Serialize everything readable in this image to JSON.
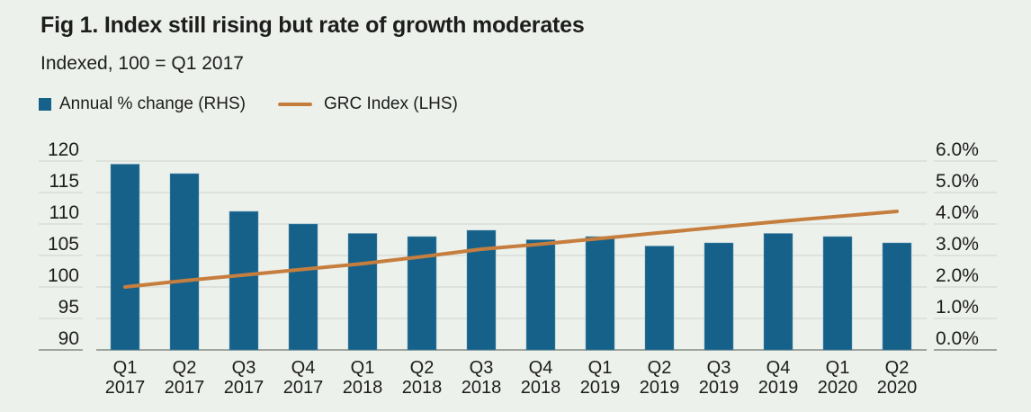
{
  "figure": {
    "title": "Fig 1. Index still rising but rate of growth moderates",
    "subtitle": "Indexed, 100 = Q1 2017"
  },
  "legend": {
    "items": [
      {
        "label": "Annual % change (RHS)",
        "marker": "square-swatch"
      },
      {
        "label": "GRC Index (LHS)",
        "marker": "line-swatch"
      }
    ]
  },
  "colors": {
    "background": "#ecf1ec",
    "bar": "#15618a",
    "line": "#c67e3e",
    "text": "#1d1d1b",
    "gridline": "#d8ded7",
    "baseline": "#a0a59e"
  },
  "chart_data": {
    "type": "bar",
    "title": "Fig 1. Index still rising but rate of growth moderates",
    "subtitle": "Indexed, 100 = Q1 2017",
    "categories": [
      "Q1 2017",
      "Q2 2017",
      "Q3 2017",
      "Q4 2017",
      "Q1 2018",
      "Q2 2018",
      "Q3 2018",
      "Q4 2018",
      "Q1 2019",
      "Q2 2019",
      "Q3 2019",
      "Q4 2019",
      "Q1 2020",
      "Q2 2020"
    ],
    "series": [
      {
        "name": "Annual % change (RHS)",
        "type": "bar",
        "axis": "right",
        "values": [
          5.9,
          5.6,
          4.4,
          4.0,
          3.7,
          3.6,
          3.8,
          3.5,
          3.6,
          3.3,
          3.4,
          3.7,
          3.6,
          3.4
        ]
      },
      {
        "name": "GRC Index (LHS)",
        "type": "line",
        "axis": "left",
        "values": [
          100.0,
          101.0,
          101.9,
          102.8,
          103.7,
          104.8,
          106.0,
          106.8,
          107.7,
          108.6,
          109.5,
          110.4,
          111.2,
          112.0
        ]
      }
    ],
    "left_axis": {
      "min": 90,
      "max": 120,
      "tick_step": 5,
      "ticks": [
        "120",
        "115",
        "110",
        "105",
        "100",
        "95",
        "90"
      ]
    },
    "right_axis": {
      "min": 0,
      "max": 6,
      "tick_step": 1,
      "ticks": [
        "6.0%",
        "5.0%",
        "4.0%",
        "3.0%",
        "2.0%",
        "1.0%",
        "0.0%"
      ]
    },
    "grid": true,
    "legend_position": "top-left"
  }
}
